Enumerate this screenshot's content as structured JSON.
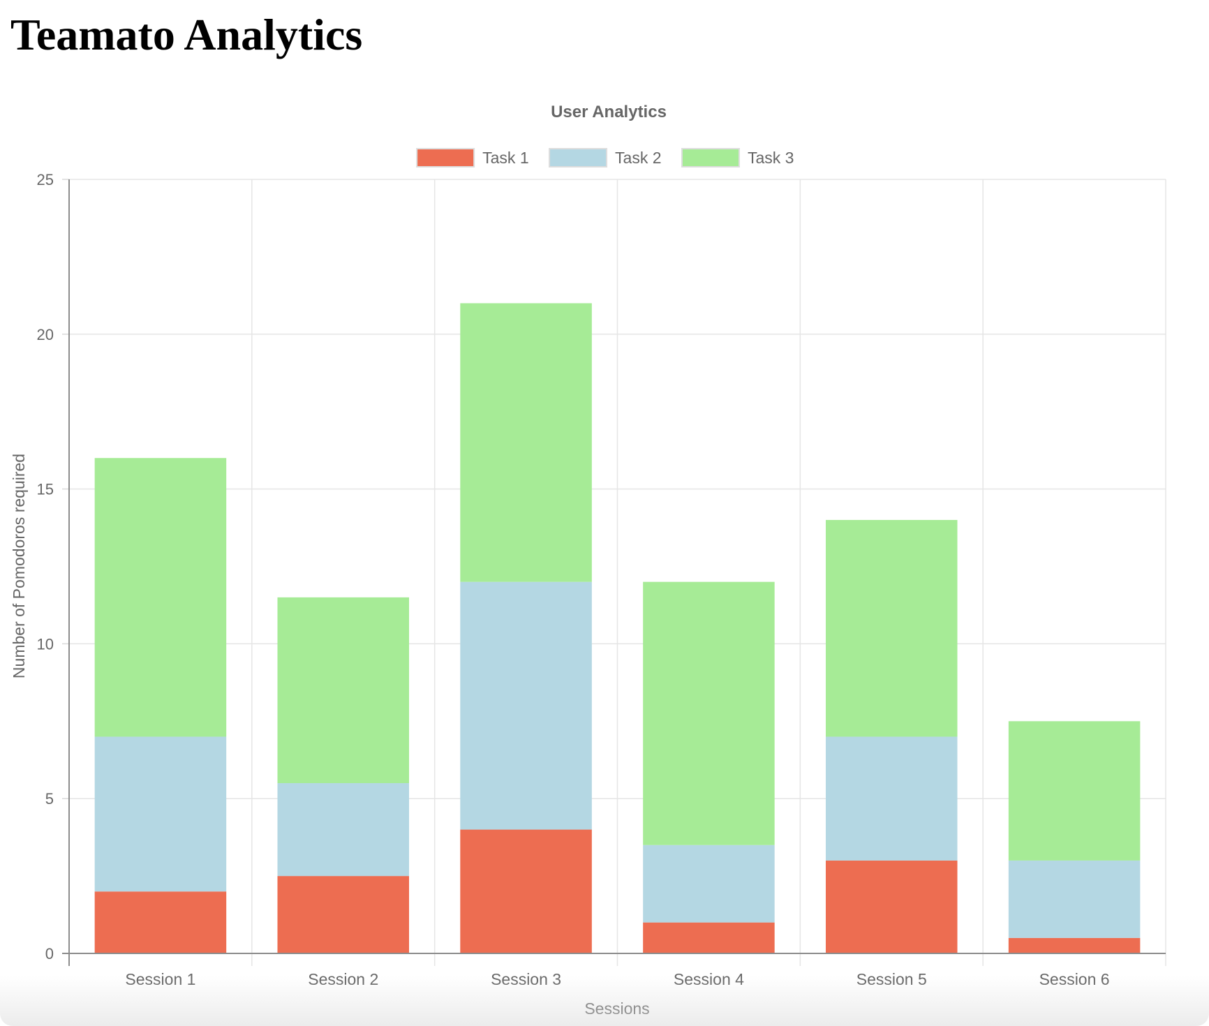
{
  "page": {
    "title": "Teamato Analytics"
  },
  "chart_data": {
    "type": "bar",
    "stacked": true,
    "title": "User Analytics",
    "xlabel": "Sessions",
    "ylabel": "Number of Pomodoros required",
    "categories": [
      "Session 1",
      "Session 2",
      "Session 3",
      "Session 4",
      "Session 5",
      "Session 6"
    ],
    "series": [
      {
        "name": "Task 1",
        "color": "#ed6d51",
        "values": [
          2,
          2.5,
          4,
          1,
          3,
          0.5
        ]
      },
      {
        "name": "Task 2",
        "color": "#b4d7e3",
        "values": [
          5,
          3,
          8,
          2.5,
          4,
          2.5
        ]
      },
      {
        "name": "Task 3",
        "color": "#a6eb96",
        "values": [
          9,
          6,
          9,
          8.5,
          7,
          4.5
        ]
      }
    ],
    "ylim": [
      0,
      25
    ],
    "yticks": [
      0,
      5,
      10,
      15,
      20,
      25
    ],
    "grid": true,
    "legend": "top"
  }
}
